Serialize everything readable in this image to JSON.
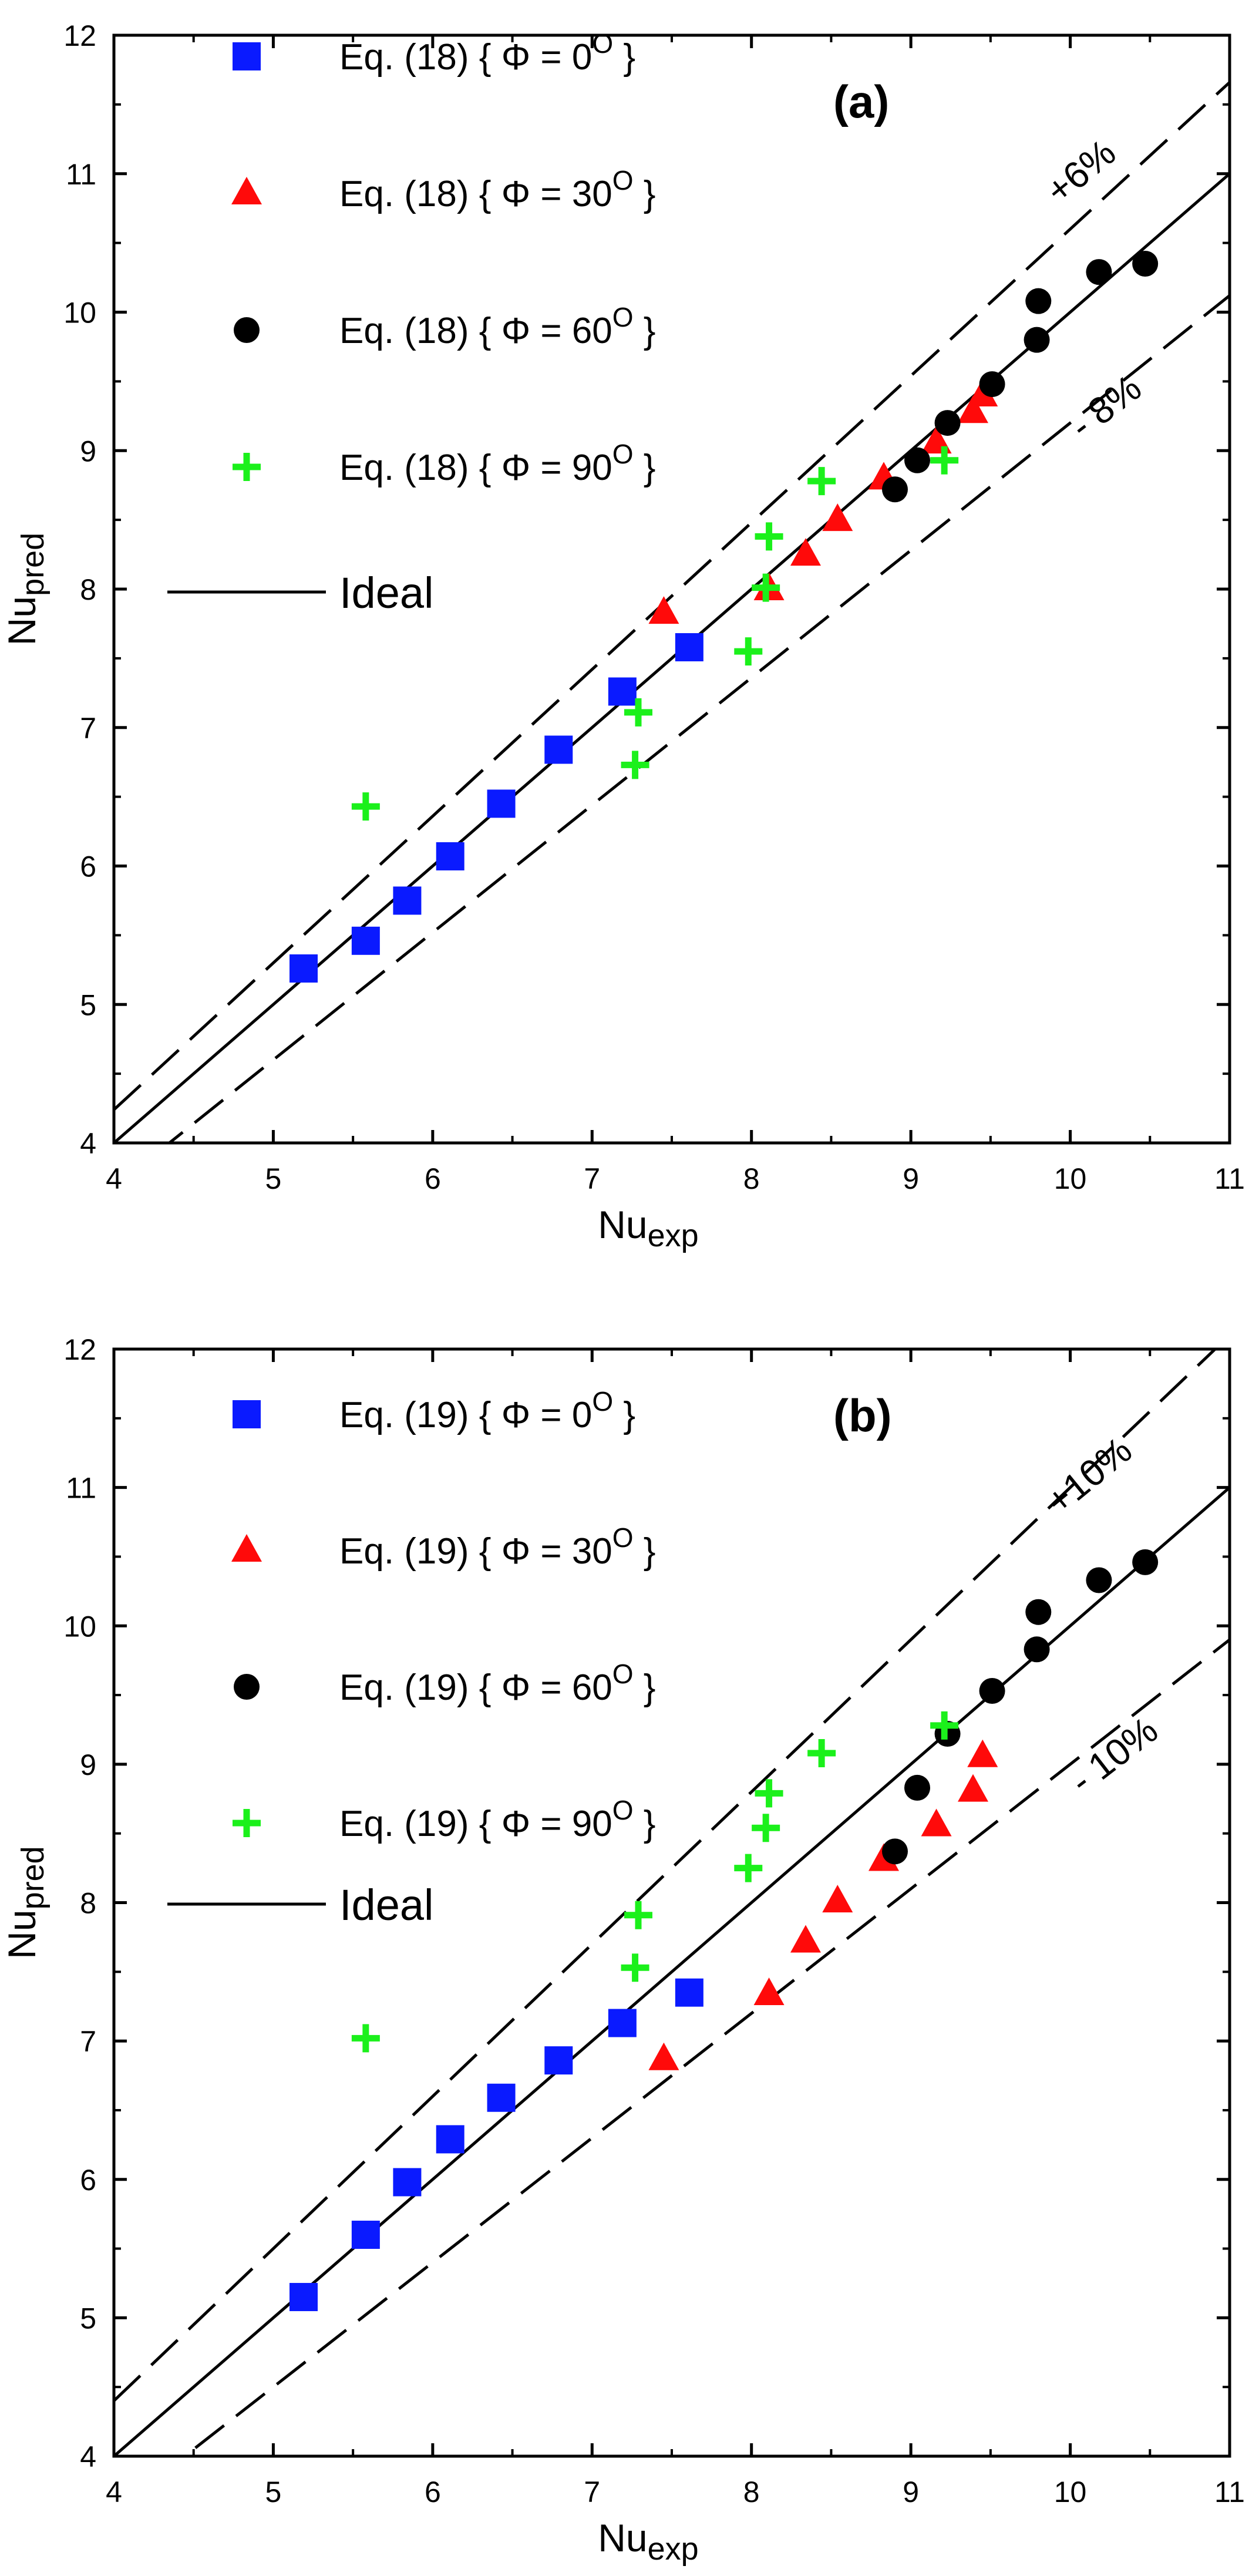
{
  "chart_data": [
    {
      "type": "scatter",
      "panel_label": "(a)",
      "xlabel": "Nuexp",
      "xlabel_main": "Nu",
      "xlabel_sub": "exp",
      "ylabel": "Nupred",
      "ylabel_main": "Nu",
      "ylabel_sub": "pred",
      "xlim": [
        4,
        11
      ],
      "ylim": [
        4,
        12
      ],
      "xticks": [
        4,
        5,
        6,
        7,
        8,
        9,
        10,
        11
      ],
      "yticks": [
        4,
        5,
        6,
        7,
        8,
        9,
        10,
        11,
        12
      ],
      "grid": false,
      "legend_position": "top-left",
      "series": [
        {
          "name": "Eq. (18) { Φ = 0o }",
          "label_text": "Eq. (18) { Φ = 0",
          "label_super": "O",
          "label_close": " }",
          "marker": "square",
          "color": "#0a1aff",
          "points": [
            [
              5.19,
              5.26
            ],
            [
              5.58,
              5.46
            ],
            [
              5.84,
              5.75
            ],
            [
              6.11,
              6.07
            ],
            [
              6.43,
              6.45
            ],
            [
              6.79,
              6.84
            ],
            [
              7.19,
              7.26
            ],
            [
              7.61,
              7.58
            ]
          ]
        },
        {
          "name": "Eq. (18) { Φ = 30o }",
          "label_text": "Eq. (18) { Φ = 30",
          "label_super": "O",
          "label_close": " }",
          "marker": "triangle",
          "color": "#ff0a0a",
          "points": [
            [
              7.45,
              7.83
            ],
            [
              8.11,
              8.0
            ],
            [
              8.34,
              8.25
            ],
            [
              8.54,
              8.5
            ],
            [
              8.83,
              8.8
            ],
            [
              9.16,
              9.06
            ],
            [
              9.39,
              9.28
            ],
            [
              9.45,
              9.4
            ]
          ]
        },
        {
          "name": "Eq. (18) { Φ = 60o }",
          "label_text": "Eq. (18) { Φ = 60",
          "label_super": "O",
          "label_close": " }",
          "marker": "circle",
          "color": "#000000",
          "points": [
            [
              8.9,
              8.72
            ],
            [
              9.04,
              8.93
            ],
            [
              9.23,
              9.2
            ],
            [
              9.51,
              9.48
            ],
            [
              9.79,
              9.8
            ],
            [
              9.8,
              10.08
            ],
            [
              10.18,
              10.29
            ],
            [
              10.47,
              10.35
            ]
          ]
        },
        {
          "name": "Eq. (18) { Φ = 90o }",
          "label_text": "Eq. (18) { Φ = 90",
          "label_super": "O",
          "label_close": " }",
          "marker": "plus",
          "color": "#1bf01b",
          "points": [
            [
              5.58,
              6.43
            ],
            [
              7.27,
              6.73
            ],
            [
              7.29,
              7.11
            ],
            [
              7.98,
              7.55
            ],
            [
              8.09,
              8.01
            ],
            [
              8.11,
              8.38
            ],
            [
              8.44,
              8.78
            ],
            [
              9.21,
              8.93
            ]
          ]
        }
      ],
      "lines": [
        {
          "name": "Ideal",
          "style": "solid",
          "factor": 1.0
        },
        {
          "name": "+6%",
          "style": "dashed",
          "factor": 1.06
        },
        {
          "name": "-8%",
          "style": "dashed",
          "factor": 0.92
        }
      ],
      "annotations": {
        "upper": "+6%",
        "lower": "- 8%"
      },
      "ideal_label": "Ideal"
    },
    {
      "type": "scatter",
      "panel_label": "(b)",
      "xlabel": "Nuexp",
      "xlabel_main": "Nu",
      "xlabel_sub": "exp",
      "ylabel": "Nupred",
      "ylabel_main": "Nu",
      "ylabel_sub": "pred",
      "xlim": [
        4,
        11
      ],
      "ylim": [
        4,
        12
      ],
      "xticks": [
        4,
        5,
        6,
        7,
        8,
        9,
        10,
        11
      ],
      "yticks": [
        4,
        5,
        6,
        7,
        8,
        9,
        10,
        11,
        12
      ],
      "grid": false,
      "legend_position": "top-left",
      "series": [
        {
          "name": "Eq. (19) { Φ = 0o }",
          "label_text": "Eq. (19) { Φ = 0",
          "label_super": "O",
          "label_close": " }",
          "marker": "square",
          "color": "#0a1aff",
          "points": [
            [
              5.19,
              5.15
            ],
            [
              5.58,
              5.6
            ],
            [
              5.84,
              5.98
            ],
            [
              6.11,
              6.29
            ],
            [
              6.43,
              6.59
            ],
            [
              6.79,
              6.86
            ],
            [
              7.19,
              7.13
            ],
            [
              7.61,
              7.35
            ]
          ]
        },
        {
          "name": "Eq. (19) { Φ = 30o }",
          "label_text": "Eq. (19) { Φ = 30",
          "label_super": "O",
          "label_close": " }",
          "marker": "triangle",
          "color": "#ff0a0a",
          "points": [
            [
              7.45,
              6.87
            ],
            [
              8.11,
              7.34
            ],
            [
              8.34,
              7.72
            ],
            [
              8.54,
              8.01
            ],
            [
              8.83,
              8.31
            ],
            [
              9.16,
              8.56
            ],
            [
              9.39,
              8.81
            ],
            [
              9.45,
              9.06
            ]
          ]
        },
        {
          "name": "Eq. (19) { Φ = 60o }",
          "label_text": "Eq. (19) { Φ = 60",
          "label_super": "O",
          "label_close": " }",
          "marker": "circle",
          "color": "#000000",
          "points": [
            [
              8.9,
              8.37
            ],
            [
              9.04,
              8.83
            ],
            [
              9.23,
              9.22
            ],
            [
              9.51,
              9.53
            ],
            [
              9.79,
              9.83
            ],
            [
              9.8,
              10.1
            ],
            [
              10.18,
              10.33
            ],
            [
              10.47,
              10.46
            ]
          ]
        },
        {
          "name": "Eq. (19) { Φ = 90o }",
          "label_text": "Eq. (19) { Φ = 90",
          "label_super": "O",
          "label_close": " }",
          "marker": "plus",
          "color": "#1bf01b",
          "points": [
            [
              5.58,
              7.02
            ],
            [
              7.27,
              7.53
            ],
            [
              7.29,
              7.91
            ],
            [
              7.98,
              8.25
            ],
            [
              8.09,
              8.54
            ],
            [
              8.11,
              8.79
            ],
            [
              8.44,
              9.08
            ],
            [
              9.21,
              9.28
            ]
          ]
        }
      ],
      "lines": [
        {
          "name": "Ideal",
          "style": "solid",
          "factor": 1.0
        },
        {
          "name": "+10%",
          "style": "dashed",
          "factor": 1.1
        },
        {
          "name": "-10%",
          "style": "dashed",
          "factor": 0.9
        }
      ],
      "annotations": {
        "upper": "+10%",
        "lower": "- 10%"
      },
      "ideal_label": "Ideal"
    }
  ]
}
